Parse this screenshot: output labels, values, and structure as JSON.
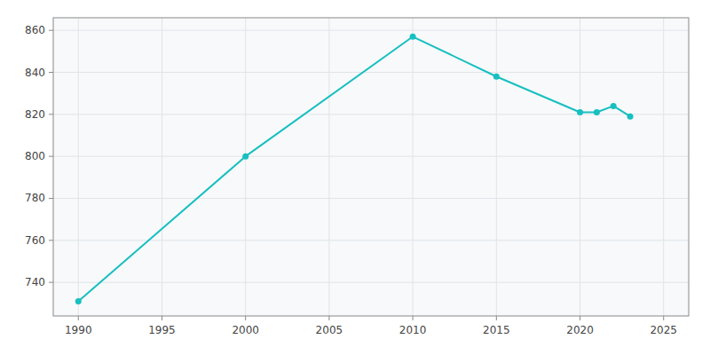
{
  "chart_data": {
    "type": "line",
    "x": [
      1990,
      2000,
      2010,
      2015,
      2020,
      2021,
      2022,
      2023
    ],
    "values": [
      731,
      800,
      857,
      838,
      821,
      821,
      824,
      819
    ],
    "color": "#17BFC0",
    "marker": "circle",
    "xlim": [
      1988.5,
      2026.5
    ],
    "ylim": [
      724,
      866
    ],
    "xticks": [
      1990,
      1995,
      2000,
      2005,
      2010,
      2015,
      2020,
      2025
    ],
    "yticks": [
      740,
      760,
      780,
      800,
      820,
      840,
      860
    ],
    "grid": true
  }
}
